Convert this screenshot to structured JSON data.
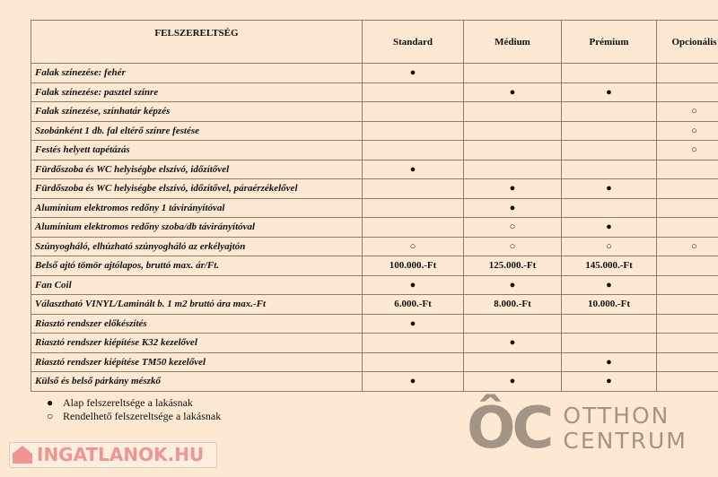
{
  "table": {
    "headers": [
      "FELSZERELTSÉG",
      "Standard",
      "Médium",
      "Prémium",
      "Opcionális"
    ],
    "rows": [
      {
        "label": "Falak színezése: fehér",
        "cells": [
          "●",
          "",
          "",
          ""
        ]
      },
      {
        "label": "Falak színezése: pasztel színre",
        "cells": [
          "",
          "●",
          "●",
          ""
        ]
      },
      {
        "label": "Falak színezése, színhatár képzés",
        "cells": [
          "",
          "",
          "",
          "○"
        ]
      },
      {
        "label": "Szobánként 1 db. fal eltérő színre festése",
        "cells": [
          "",
          "",
          "",
          "○"
        ]
      },
      {
        "label": "Festés helyett tapétázás",
        "cells": [
          "",
          "",
          "",
          "○"
        ]
      },
      {
        "label": "Fürdőszoba és WC helyiségbe elszívó, időzítővel",
        "cells": [
          "●",
          "",
          "",
          ""
        ]
      },
      {
        "label": "Fürdőszoba és WC helyiségbe elszívó, időzítővel, páraérzékelővel",
        "cells": [
          "",
          "●",
          "●",
          ""
        ]
      },
      {
        "label": "Alumínium elektromos redőny 1 távirányítóval",
        "cells": [
          "",
          "●",
          "",
          ""
        ]
      },
      {
        "label": "Alumínium elektromos redőny szoba/db távirányítóval",
        "cells": [
          "",
          "○",
          "●",
          ""
        ]
      },
      {
        "label": "Szúnyogháló, elhúzható szúnyogháló az erkélyajtón",
        "cells": [
          "○",
          "○",
          "○",
          "○"
        ]
      },
      {
        "label": "Belső ajtó tömör ajtólapos, bruttó max. ár/Ft.",
        "cells": [
          "100.000.-Ft",
          "125.000.-Ft",
          "145.000.-Ft",
          ""
        ]
      },
      {
        "label": "Fan Coil",
        "cells": [
          "●",
          "●",
          "●",
          ""
        ]
      },
      {
        "label": "Választható VINYL/Laminált b. 1 m2 bruttó ára max.-Ft",
        "cells": [
          "6.000.-Ft",
          "8.000.-Ft",
          "10.000.-Ft",
          ""
        ]
      },
      {
        "label": "Riasztó rendszer előkészítés",
        "cells": [
          "●",
          "",
          "",
          ""
        ]
      },
      {
        "label": "Riasztó rendszer kiépítése K32 kezelővel",
        "cells": [
          "",
          "●",
          "",
          ""
        ]
      },
      {
        "label": "Riasztó rendszer kiépítése TM50 kezelővel",
        "cells": [
          "",
          "",
          "●",
          ""
        ]
      },
      {
        "label": "Külső és belső párkány mészkő",
        "cells": [
          "●",
          "●",
          "●",
          ""
        ]
      }
    ]
  },
  "legend": [
    {
      "symbol": "●",
      "text": "Alap felszereltsége a lakásnak"
    },
    {
      "symbol": "○",
      "text": "Rendelhető felszereltsége a lakásnak"
    }
  ],
  "watermark": {
    "logo": "ÔC",
    "line1": "OTTHON",
    "line2": "CENTRUM"
  },
  "site_watermark": "INGATLANOK.HU"
}
